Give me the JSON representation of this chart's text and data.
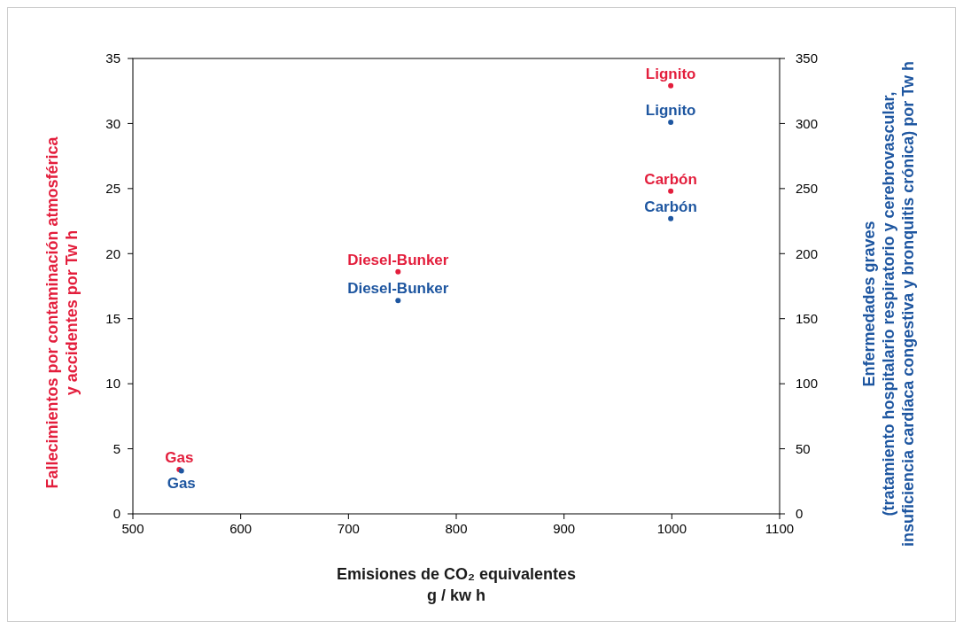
{
  "chart_data": {
    "type": "scatter",
    "xlabel": "Emisiones de CO₂ equivalentes\ng / kw h",
    "ylabel": "Fallecimientos por contaminación atmosférica\ny accidentes por Tw h",
    "y2label": "Enfermedades graves\n(tratamiento hospitalario respiratorio y cerebrovascular,\ninsuficiencia cardíaca congestiva y bronquitis crónica) por Tw h",
    "xlim": [
      500,
      1100
    ],
    "xticks": [
      500,
      600,
      700,
      800,
      900,
      1000,
      1100
    ],
    "ylim": [
      0,
      35
    ],
    "yticks": [
      0,
      5,
      10,
      15,
      20,
      25,
      30,
      35
    ],
    "y2lim": [
      0,
      350
    ],
    "y2ticks": [
      0,
      50,
      100,
      150,
      200,
      250,
      300,
      350
    ],
    "marker": "circle",
    "grid": false,
    "series": [
      {
        "color": "#e31e3c",
        "x": [
          543,
          746,
          999,
          999
        ],
        "values": [
          3.4,
          18.6,
          24.8,
          32.9
        ],
        "value_labels": [
          "Gas",
          "Diesel-Bunker",
          "Carbón",
          "Lignito"
        ]
      },
      {
        "color": "#1e56a0",
        "axis": "y2",
        "x": [
          545,
          746,
          999,
          999
        ],
        "values": [
          33,
          164,
          227,
          301
        ],
        "value_labels": [
          "Gas",
          "Diesel-Bunker",
          "Carbón",
          "Lignito"
        ]
      }
    ]
  }
}
